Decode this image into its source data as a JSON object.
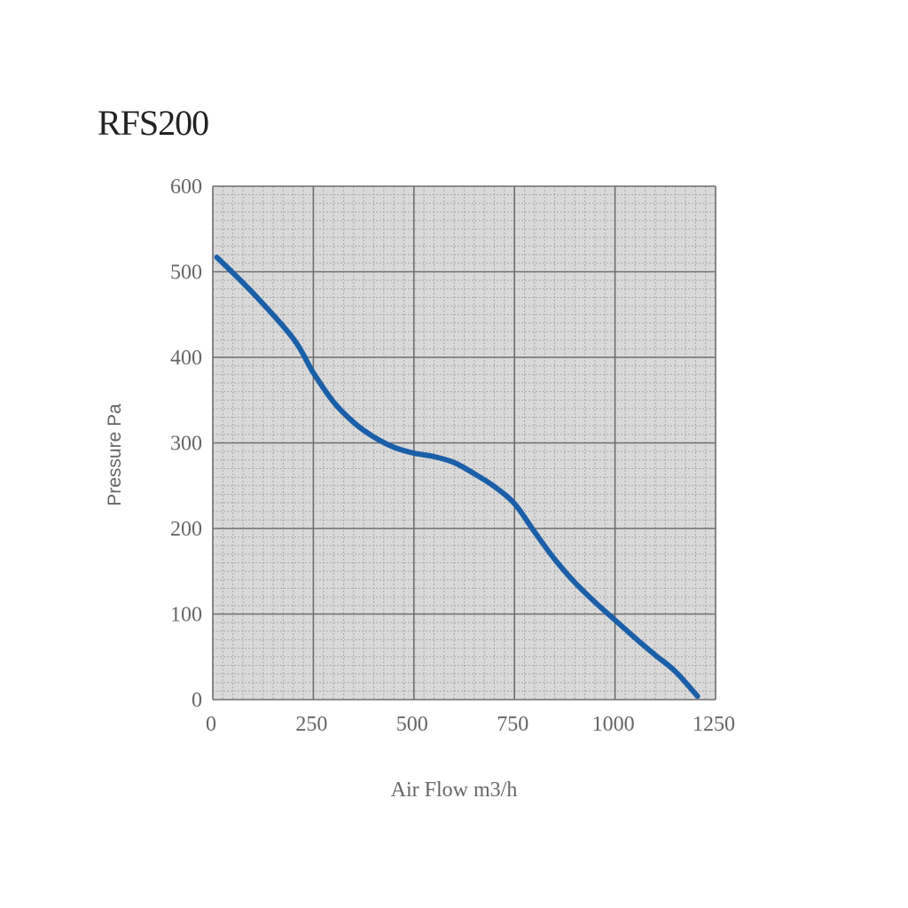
{
  "chart_data": {
    "type": "line",
    "title": "RFS200",
    "xlabel": "Air Flow m3/h",
    "ylabel": "Pressure Pa",
    "xlim": [
      0,
      1250
    ],
    "ylim": [
      0,
      600
    ],
    "x_ticks": [
      "0",
      "250",
      "500",
      "750",
      "1000",
      "1250"
    ],
    "y_ticks": [
      "0",
      "100",
      "200",
      "300",
      "400",
      "500",
      "600"
    ],
    "grid": true,
    "series": [
      {
        "color": "#1a5fa8",
        "x": [
          10,
          100,
          200,
          250,
          300,
          350,
          400,
          450,
          500,
          550,
          600,
          650,
          700,
          750,
          800,
          850,
          900,
          950,
          1000,
          1050,
          1100,
          1150,
          1205
        ],
        "y": [
          517,
          475,
          422,
          382,
          348,
          324,
          307,
          295,
          288,
          284,
          277,
          264,
          249,
          229,
          196,
          164,
          137,
          114,
          93,
          72,
          52,
          33,
          4
        ]
      }
    ]
  },
  "colors": {
    "plot_bg": "#d9d9d9",
    "grid_major": "#6e6e6e",
    "grid_minor": "#a8a8a8"
  }
}
